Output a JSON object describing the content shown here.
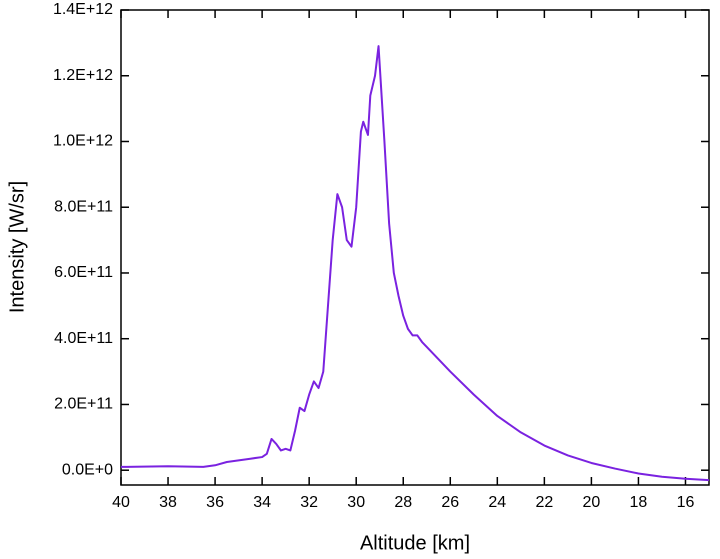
{
  "chart_data": {
    "type": "line",
    "x_label": "Altitude [km]",
    "y_label": "Intensity [W/sr]",
    "x": [
      40,
      38,
      36.5,
      36,
      35.5,
      35,
      34.5,
      34,
      33.8,
      33.6,
      33.4,
      33.2,
      33,
      32.8,
      32.6,
      32.4,
      32.2,
      32,
      31.8,
      31.6,
      31.4,
      31.2,
      31,
      30.8,
      30.6,
      30.4,
      30.2,
      30,
      29.8,
      29.7,
      29.5,
      29.4,
      29.2,
      29.05,
      28.8,
      28.6,
      28.4,
      28.2,
      28,
      27.8,
      27.6,
      27.4,
      27.2,
      27,
      26,
      25,
      24,
      23,
      22,
      21,
      20,
      19,
      18,
      17,
      16,
      15
    ],
    "series": [
      {
        "name": "Intensity",
        "color": "#7a22e0",
        "values": [
          10000000000,
          12000000000,
          10000000000,
          15000000000,
          25000000000,
          30000000000,
          35000000000,
          40000000000,
          50000000000,
          95000000000,
          80000000000,
          60000000000,
          65000000000,
          60000000000,
          120000000000,
          190000000000,
          180000000000,
          230000000000,
          270000000000,
          250000000000,
          300000000000,
          500000000000,
          700000000000,
          840000000000,
          800000000000,
          700000000000,
          680000000000,
          800000000000,
          1030000000000,
          1060000000000,
          1020000000000,
          1140000000000,
          1200000000000,
          1290000000000,
          1000000000000,
          750000000000,
          600000000000,
          530000000000,
          470000000000,
          430000000000,
          410000000000,
          410000000000,
          390000000000,
          375000000000,
          300000000000,
          230000000000,
          165000000000,
          115000000000,
          75000000000,
          45000000000,
          22000000000,
          5000000000,
          -10000000000,
          -20000000000,
          -26000000000,
          -30000000000
        ]
      }
    ],
    "xlim": [
      40,
      15
    ],
    "ylim": [
      -45000000000,
      1400000000000
    ],
    "xticks": [
      40,
      38,
      36,
      34,
      32,
      30,
      28,
      26,
      24,
      22,
      20,
      18,
      16
    ],
    "yticks": [
      {
        "value": 0,
        "label": "0.0E+0"
      },
      {
        "value": 200000000000,
        "label": "2.0E+11"
      },
      {
        "value": 400000000000,
        "label": "4.0E+11"
      },
      {
        "value": 600000000000,
        "label": "6.0E+11"
      },
      {
        "value": 800000000000,
        "label": "8.0E+11"
      },
      {
        "value": 1000000000000,
        "label": "1.0E+12"
      },
      {
        "value": 1200000000000,
        "label": "1.2E+12"
      },
      {
        "value": 1400000000000,
        "label": "1.4E+12"
      }
    ]
  }
}
